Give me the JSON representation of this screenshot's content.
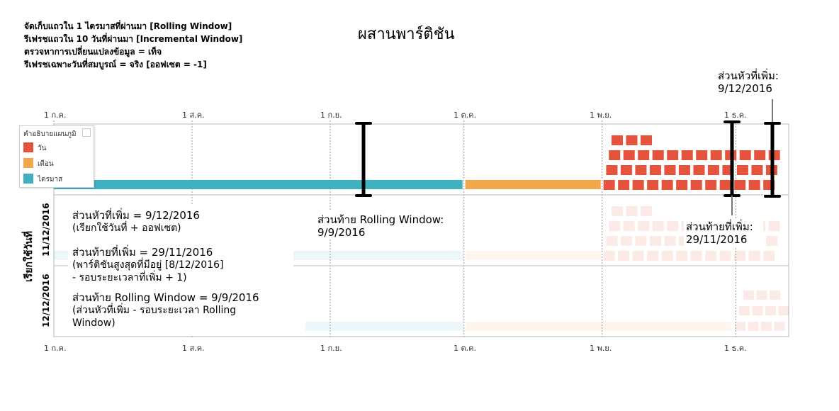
{
  "config_lines": [
    "จัดเก็บแถวใน 1 ไตรมาสที่ผ่านมา [Rolling Window]",
    "รีเฟรชแถวใน 10 วันที่ผ่านมา [Incremental Window]",
    "ตรวจหาการเปลี่ยนแปลงข้อมูล = เท็จ",
    "รีเฟรชเฉพาะวันที่สมบูรณ์ = จริง [ออฟเซต = -1]"
  ],
  "title": "ผสานพาร์ติชัน",
  "axis_ticks": [
    "1 ก.ค.",
    "1 ส.ค.",
    "1 ก.ย.",
    "1 ต.ค.",
    "1 พ.ย.",
    "1 ธ.ค."
  ],
  "legend": {
    "title": "คำอธิบายแผนภูมิ",
    "items": [
      {
        "label": "วัน",
        "color": "#e5533d"
      },
      {
        "label": "เดือน",
        "color": "#f2a74b"
      },
      {
        "label": "ไตรมาส",
        "color": "#3fb1c1"
      }
    ]
  },
  "y_axis_label": "เรียกใช้วันที่",
  "row_labels": [
    "11/12/2016",
    "12/12/2016"
  ],
  "annotations": {
    "incr_head_top": [
      "ส่วนหัวที่เพิ่ม:",
      "9/12/2016"
    ],
    "rolling_tail": [
      "ส่วนท้าย Rolling Window:",
      "9/9/2016"
    ],
    "incr_tail": [
      "ส่วนท้ายที่เพิ่ม:",
      "29/11/2016"
    ]
  },
  "notes": [
    {
      "lines": [
        "ส่วนหัวที่เพิ่ม = 9/12/2016"
      ],
      "sub": [
        "(เรียกใช้วันที่ + ออฟเซต)"
      ]
    },
    {
      "lines": [
        "ส่วนท้ายที่เพิ่ม = 29/11/2016"
      ],
      "sub": [
        "(พาร์ติชันสูงสุดที่มีอยู่ [8/12/2016]",
        "- รอบระยะเวลาที่เพิ่ม + 1)"
      ]
    },
    {
      "lines": [
        "ส่วนท้าย Rolling Window = 9/9/2016"
      ],
      "sub": [
        "(ส่วนหัวที่เพิ่ม - รอบระยะเวลา Rolling",
        "Window)"
      ]
    }
  ],
  "timeline": {
    "start": "2016-07-01",
    "end": "2016-12-12",
    "quarter_partition": [
      "2016-07-01",
      "2016-09-30"
    ],
    "month_partition": [
      "2016-10-01",
      "2016-10-31"
    ],
    "day_partitions_from": "2016-11-01",
    "day_partitions_to": "2016-12-09"
  }
}
